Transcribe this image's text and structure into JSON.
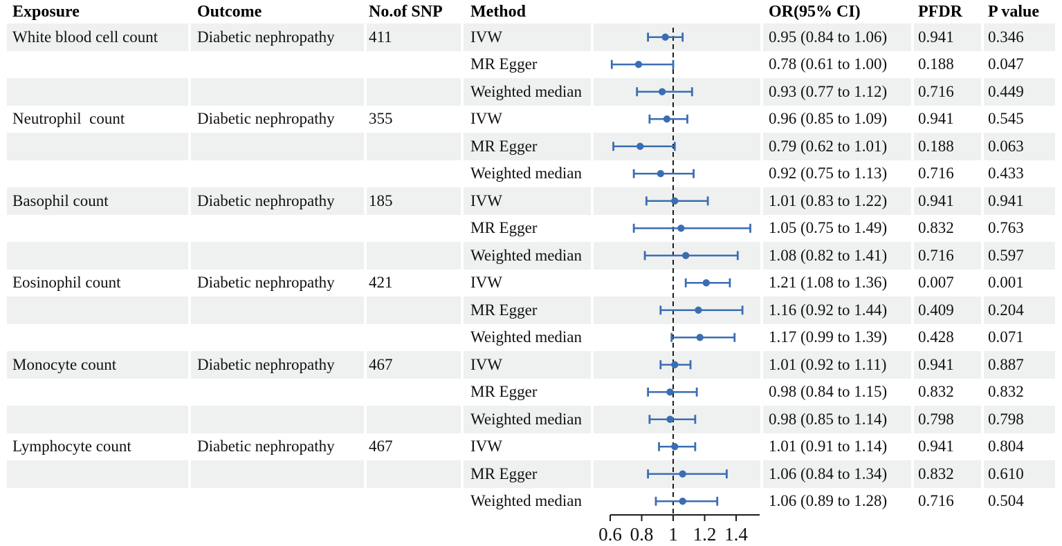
{
  "header": {
    "exposure": "Exposure",
    "outcome": "Outcome",
    "snp": "No.of SNP",
    "method": "Method",
    "or_ci": "OR(95% CI)",
    "pfdr": "PFDR",
    "pvalue": "P value"
  },
  "colors": {
    "accent_blue": "#3b6db3",
    "stripe": "#eef1ef",
    "reference_line": "#1a1a1a",
    "axis": "#1a1a1a",
    "text": "#111111"
  },
  "chart_data": {
    "type": "forest",
    "xlim": [
      0.55,
      1.55
    ],
    "x_ticks": [
      "0.6",
      "0.8",
      "1",
      "1.2",
      "1.4"
    ],
    "x_tick_values": [
      0.6,
      0.8,
      1.0,
      1.2,
      1.4
    ],
    "reference_line": 1.0,
    "legend_position": "none",
    "grid": false,
    "rows": [
      {
        "exposure": "White blood cell count",
        "outcome": "Diabetic nephropathy",
        "snp": "411",
        "method": "IVW",
        "or": 0.95,
        "lo": 0.84,
        "hi": 1.06,
        "or_ci": "0.95 (0.84 to 1.06)",
        "pfdr": "0.941",
        "pvalue": "0.346"
      },
      {
        "exposure": "",
        "outcome": "",
        "snp": "",
        "method": "MR Egger",
        "or": 0.78,
        "lo": 0.61,
        "hi": 1.0,
        "or_ci": "0.78 (0.61 to 1.00)",
        "pfdr": "0.188",
        "pvalue": "0.047"
      },
      {
        "exposure": "",
        "outcome": "",
        "snp": "",
        "method": "Weighted median",
        "or": 0.93,
        "lo": 0.77,
        "hi": 1.12,
        "or_ci": "0.93 (0.77 to 1.12)",
        "pfdr": "0.716",
        "pvalue": "0.449"
      },
      {
        "exposure": "Neutrophil  count",
        "outcome": "Diabetic nephropathy",
        "snp": "355",
        "method": "IVW",
        "or": 0.96,
        "lo": 0.85,
        "hi": 1.09,
        "or_ci": "0.96 (0.85 to 1.09)",
        "pfdr": "0.941",
        "pvalue": "0.545"
      },
      {
        "exposure": "",
        "outcome": "",
        "snp": "",
        "method": "MR Egger",
        "or": 0.79,
        "lo": 0.62,
        "hi": 1.01,
        "or_ci": "0.79 (0.62 to 1.01)",
        "pfdr": "0.188",
        "pvalue": "0.063"
      },
      {
        "exposure": "",
        "outcome": "",
        "snp": "",
        "method": "Weighted median",
        "or": 0.92,
        "lo": 0.75,
        "hi": 1.13,
        "or_ci": "0.92 (0.75 to 1.13)",
        "pfdr": "0.716",
        "pvalue": "0.433"
      },
      {
        "exposure": "Basophil count",
        "outcome": "Diabetic nephropathy",
        "snp": "185",
        "method": "IVW",
        "or": 1.01,
        "lo": 0.83,
        "hi": 1.22,
        "or_ci": "1.01 (0.83 to 1.22)",
        "pfdr": "0.941",
        "pvalue": "0.941"
      },
      {
        "exposure": "",
        "outcome": "",
        "snp": "",
        "method": "MR Egger",
        "or": 1.05,
        "lo": 0.75,
        "hi": 1.49,
        "or_ci": "1.05 (0.75 to 1.49)",
        "pfdr": "0.832",
        "pvalue": "0.763"
      },
      {
        "exposure": "",
        "outcome": "",
        "snp": "",
        "method": "Weighted median",
        "or": 1.08,
        "lo": 0.82,
        "hi": 1.41,
        "or_ci": "1.08 (0.82 to 1.41)",
        "pfdr": "0.716",
        "pvalue": "0.597"
      },
      {
        "exposure": "Eosinophil count",
        "outcome": "Diabetic nephropathy",
        "snp": "421",
        "method": "IVW",
        "or": 1.21,
        "lo": 1.08,
        "hi": 1.36,
        "or_ci": "1.21 (1.08 to 1.36)",
        "pfdr": "0.007",
        "pvalue": "0.001"
      },
      {
        "exposure": "",
        "outcome": "",
        "snp": "",
        "method": "MR Egger",
        "or": 1.16,
        "lo": 0.92,
        "hi": 1.44,
        "or_ci": "1.16 (0.92 to 1.44)",
        "pfdr": "0.409",
        "pvalue": "0.204"
      },
      {
        "exposure": "",
        "outcome": "",
        "snp": "",
        "method": "Weighted median",
        "or": 1.17,
        "lo": 0.99,
        "hi": 1.39,
        "or_ci": "1.17 (0.99 to 1.39)",
        "pfdr": "0.428",
        "pvalue": "0.071"
      },
      {
        "exposure": "Monocyte count",
        "outcome": "Diabetic nephropathy",
        "snp": "467",
        "method": "IVW",
        "or": 1.01,
        "lo": 0.92,
        "hi": 1.11,
        "or_ci": "1.01 (0.92 to 1.11)",
        "pfdr": "0.941",
        "pvalue": "0.887"
      },
      {
        "exposure": "",
        "outcome": "",
        "snp": "",
        "method": "MR Egger",
        "or": 0.98,
        "lo": 0.84,
        "hi": 1.15,
        "or_ci": "0.98 (0.84 to 1.15)",
        "pfdr": "0.832",
        "pvalue": "0.832"
      },
      {
        "exposure": "",
        "outcome": "",
        "snp": "",
        "method": "Weighted median",
        "or": 0.98,
        "lo": 0.85,
        "hi": 1.14,
        "or_ci": "0.98 (0.85 to 1.14)",
        "pfdr": "0.798",
        "pvalue": "0.798"
      },
      {
        "exposure": "Lymphocyte count",
        "outcome": "Diabetic nephropathy",
        "snp": "467",
        "method": "IVW",
        "or": 1.01,
        "lo": 0.91,
        "hi": 1.14,
        "or_ci": "1.01 (0.91 to 1.14)",
        "pfdr": "0.941",
        "pvalue": "0.804"
      },
      {
        "exposure": "",
        "outcome": "",
        "snp": "",
        "method": "MR Egger",
        "or": 1.06,
        "lo": 0.84,
        "hi": 1.34,
        "or_ci": "1.06 (0.84 to 1.34)",
        "pfdr": "0.832",
        "pvalue": "0.610"
      },
      {
        "exposure": "",
        "outcome": "",
        "snp": "",
        "method": "Weighted median",
        "or": 1.06,
        "lo": 0.89,
        "hi": 1.28,
        "or_ci": "1.06 (0.89 to 1.28)",
        "pfdr": "0.716",
        "pvalue": "0.504"
      }
    ]
  }
}
